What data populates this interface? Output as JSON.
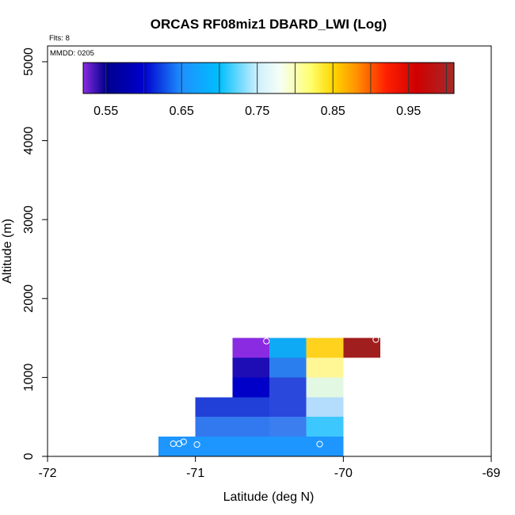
{
  "chart_data": {
    "type": "heatmap",
    "title": "ORCAS RF08miz1 DBARD_LWI (Log)",
    "annotations": {
      "flights": "Flts: 8",
      "date": "MMDD: 0205"
    },
    "xlabel": "Latitude (deg N)",
    "ylabel": "Altitude (m)",
    "xlim": [
      -72,
      -69
    ],
    "ylim": [
      0,
      5200
    ],
    "xticks": [
      -72,
      -71,
      -70,
      -69
    ],
    "xtick_labels": [
      "-72",
      "-71",
      "-70",
      "-69"
    ],
    "yticks": [
      0,
      1000,
      2000,
      3000,
      4000,
      5000
    ],
    "ytick_labels": [
      "0",
      "1000",
      "2000",
      "3000",
      "4000",
      "5000"
    ],
    "colorbar": {
      "min": 0.52,
      "max": 1.01,
      "ticks": [
        0.55,
        0.65,
        0.75,
        0.85,
        0.95
      ],
      "tick_labels": [
        "0.55",
        "0.65",
        "0.75",
        "0.85",
        "0.95"
      ],
      "stops": [
        {
          "v": 0.52,
          "color": "#8a2be2"
        },
        {
          "v": 0.55,
          "color": "#00008b"
        },
        {
          "v": 0.6,
          "color": "#0000cd"
        },
        {
          "v": 0.65,
          "color": "#1e90ff"
        },
        {
          "v": 0.7,
          "color": "#00bfff"
        },
        {
          "v": 0.75,
          "color": "#cdeffd"
        },
        {
          "v": 0.78,
          "color": "#f5fff5"
        },
        {
          "v": 0.82,
          "color": "#ffff70"
        },
        {
          "v": 0.85,
          "color": "#ffd700"
        },
        {
          "v": 0.88,
          "color": "#ff9500"
        },
        {
          "v": 0.92,
          "color": "#ff2000"
        },
        {
          "v": 0.96,
          "color": "#d00000"
        },
        {
          "v": 1.01,
          "color": "#a52a2a"
        }
      ]
    },
    "cell_width": 0.25,
    "cell_height": 250,
    "cells": [
      {
        "x": -71.25,
        "y": 0,
        "value": 0.665,
        "color": "#1e96ff"
      },
      {
        "x": -71.0,
        "y": 0,
        "value": 0.665,
        "color": "#1e96ff"
      },
      {
        "x": -70.75,
        "y": 0,
        "value": 0.665,
        "color": "#1e96ff"
      },
      {
        "x": -70.5,
        "y": 0,
        "value": 0.665,
        "color": "#1e96ff"
      },
      {
        "x": -70.25,
        "y": 0,
        "value": 0.665,
        "color": "#1e96ff"
      },
      {
        "x": -71.0,
        "y": 250,
        "value": 0.635,
        "color": "#3278ee"
      },
      {
        "x": -70.75,
        "y": 250,
        "value": 0.635,
        "color": "#3278ee"
      },
      {
        "x": -70.5,
        "y": 250,
        "value": 0.64,
        "color": "#3a7ef0"
      },
      {
        "x": -70.25,
        "y": 250,
        "value": 0.71,
        "color": "#3cc8ff"
      },
      {
        "x": -71.0,
        "y": 500,
        "value": 0.615,
        "color": "#2040d8"
      },
      {
        "x": -70.75,
        "y": 500,
        "value": 0.615,
        "color": "#2040d8"
      },
      {
        "x": -70.5,
        "y": 500,
        "value": 0.615,
        "color": "#2a48dc"
      },
      {
        "x": -70.25,
        "y": 500,
        "value": 0.745,
        "color": "#b4dcfc"
      },
      {
        "x": -70.75,
        "y": 750,
        "value": 0.595,
        "color": "#0000c8"
      },
      {
        "x": -70.5,
        "y": 750,
        "value": 0.615,
        "color": "#2a48dc"
      },
      {
        "x": -70.25,
        "y": 750,
        "value": 0.78,
        "color": "#e2f8e2"
      },
      {
        "x": -70.75,
        "y": 1000,
        "value": 0.575,
        "color": "#1e0db4"
      },
      {
        "x": -70.5,
        "y": 1000,
        "value": 0.635,
        "color": "#2a7eee"
      },
      {
        "x": -70.25,
        "y": 1000,
        "value": 0.825,
        "color": "#fff696"
      },
      {
        "x": -70.75,
        "y": 1250,
        "value": 0.525,
        "color": "#8a2be2"
      },
      {
        "x": -70.5,
        "y": 1250,
        "value": 0.7,
        "color": "#0faaf5"
      },
      {
        "x": -70.25,
        "y": 1250,
        "value": 0.855,
        "color": "#ffd21e"
      },
      {
        "x": -70.0,
        "y": 1250,
        "value": 1.005,
        "color": "#a01e1e"
      }
    ],
    "points": [
      {
        "x": -71.15,
        "y": 160
      },
      {
        "x": -71.11,
        "y": 160
      },
      {
        "x": -71.08,
        "y": 185
      },
      {
        "x": -70.99,
        "y": 150
      },
      {
        "x": -70.52,
        "y": 1460
      },
      {
        "x": -70.16,
        "y": 155
      },
      {
        "x": -69.78,
        "y": 1480
      }
    ]
  }
}
